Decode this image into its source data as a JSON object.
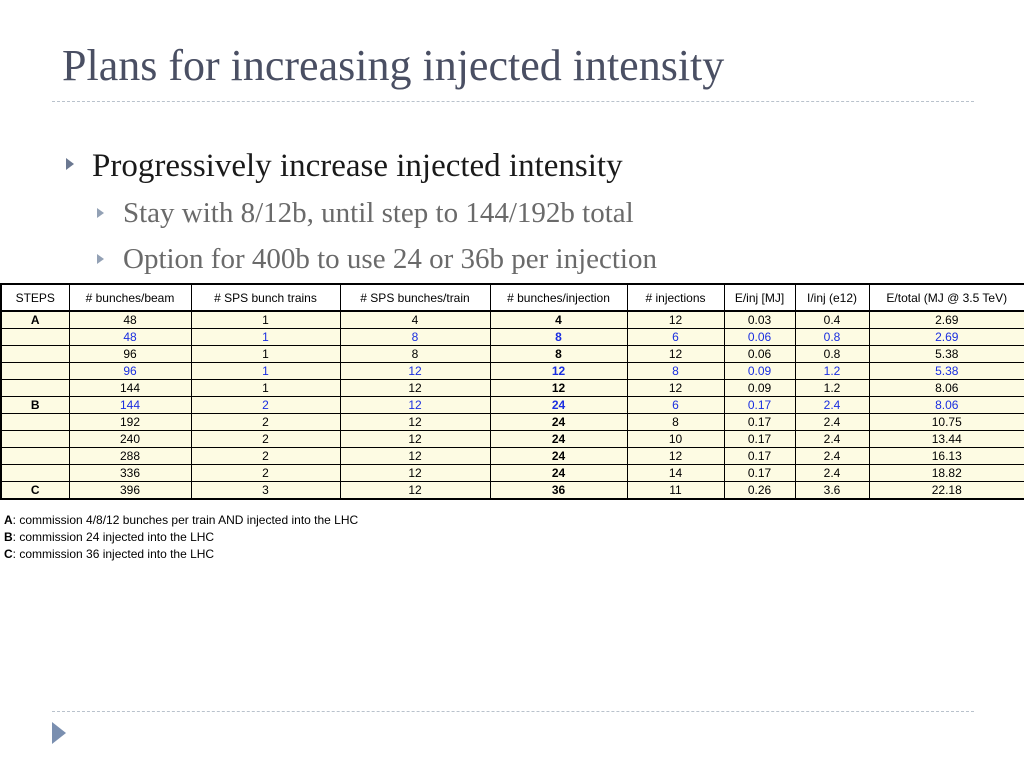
{
  "slide": {
    "title": "Plans for increasing injected intensity",
    "bullets": [
      {
        "text": "Progressively increase injected intensity",
        "level": 1
      },
      {
        "text": "Stay with 8/12b, until step to 144/192b total",
        "level": 2
      },
      {
        "text": "Option for 400b to use 24 or 36b per injection",
        "level": 2
      }
    ]
  },
  "table": {
    "headers": [
      "STEPS",
      "# bunches/beam",
      "# SPS bunch trains",
      "# SPS bunches/train",
      "# bunches/injection",
      "# injections",
      "E/inj [MJ]",
      "I/inj (e12)",
      "E/total (MJ @ 3.5 TeV)"
    ],
    "rows": [
      {
        "step": "A",
        "highlight": false,
        "cells": [
          "48",
          "1",
          "4",
          "4",
          "12",
          "0.03",
          "0.4",
          "2.69"
        ]
      },
      {
        "step": "",
        "highlight": true,
        "cells": [
          "48",
          "1",
          "8",
          "8",
          "6",
          "0.06",
          "0.8",
          "2.69"
        ]
      },
      {
        "step": "",
        "highlight": false,
        "cells": [
          "96",
          "1",
          "8",
          "8",
          "12",
          "0.06",
          "0.8",
          "5.38"
        ]
      },
      {
        "step": "",
        "highlight": true,
        "cells": [
          "96",
          "1",
          "12",
          "12",
          "8",
          "0.09",
          "1.2",
          "5.38"
        ]
      },
      {
        "step": "",
        "highlight": false,
        "cells": [
          "144",
          "1",
          "12",
          "12",
          "12",
          "0.09",
          "1.2",
          "8.06"
        ]
      },
      {
        "step": "B",
        "highlight": true,
        "cells": [
          "144",
          "2",
          "12",
          "24",
          "6",
          "0.17",
          "2.4",
          "8.06"
        ]
      },
      {
        "step": "",
        "highlight": false,
        "cells": [
          "192",
          "2",
          "12",
          "24",
          "8",
          "0.17",
          "2.4",
          "10.75"
        ]
      },
      {
        "step": "",
        "highlight": false,
        "cells": [
          "240",
          "2",
          "12",
          "24",
          "10",
          "0.17",
          "2.4",
          "13.44"
        ]
      },
      {
        "step": "",
        "highlight": false,
        "cells": [
          "288",
          "2",
          "12",
          "24",
          "12",
          "0.17",
          "2.4",
          "16.13"
        ]
      },
      {
        "step": "",
        "highlight": false,
        "cells": [
          "336",
          "2",
          "12",
          "24",
          "14",
          "0.17",
          "2.4",
          "18.82"
        ]
      },
      {
        "step": "C",
        "highlight": false,
        "cells": [
          "396",
          "3",
          "12",
          "36",
          "11",
          "0.26",
          "3.6",
          "22.18"
        ]
      }
    ]
  },
  "notes": [
    {
      "key": "A",
      "text": ": commission 4/8/12 bunches per train AND injected into the LHC"
    },
    {
      "key": "B",
      "text": ": commission 24 injected into the LHC"
    },
    {
      "key": "C",
      "text": ": commission 36 injected into the LHC"
    }
  ],
  "colors": {
    "title": "#4a4f63",
    "highlight_text": "#1a2ee0",
    "cell_background": "#fdfbe3",
    "bullet_arrow": "#6b7891"
  },
  "icons": {
    "bullet": "triangle-right-icon",
    "navigation": "next-slide-icon"
  }
}
